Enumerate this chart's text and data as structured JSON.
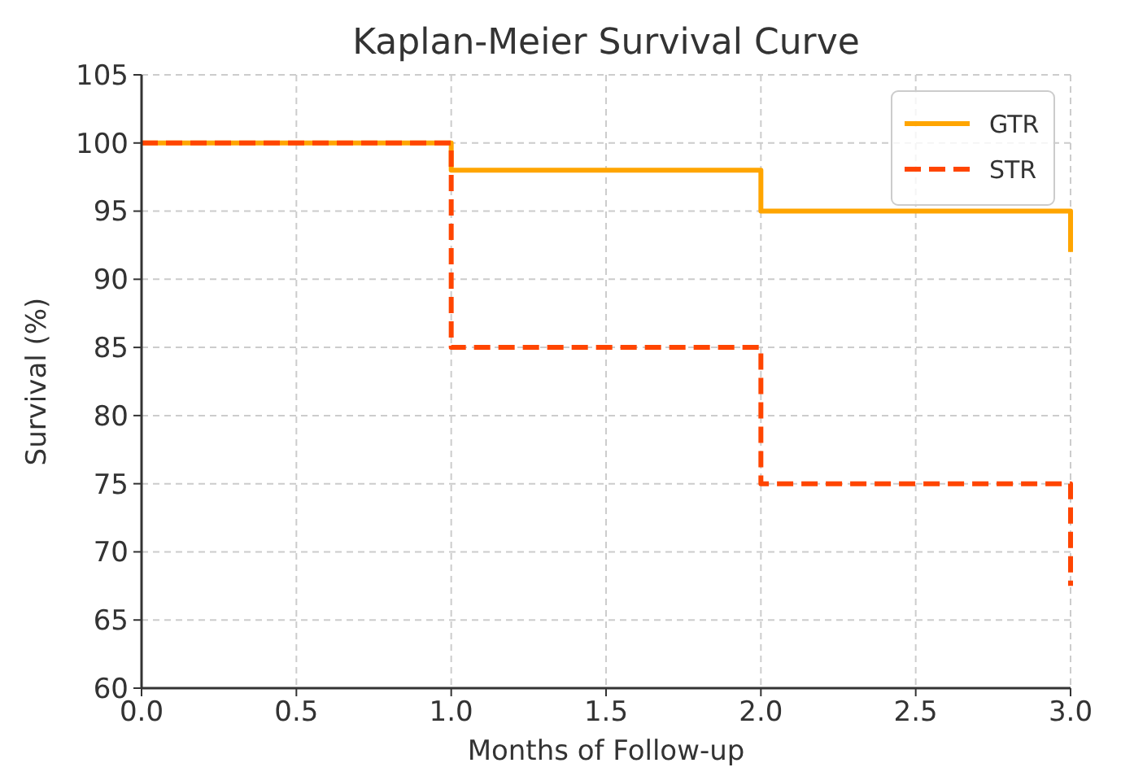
{
  "chart_data": {
    "type": "step",
    "title": "Kaplan-Meier Survival Curve",
    "xlabel": "Months of Follow-up",
    "ylabel": "Survival (%)",
    "x": [
      0,
      1,
      2,
      3
    ],
    "series": [
      {
        "name": "GTR",
        "color": "#ffa500",
        "values": [
          100,
          98,
          95,
          92
        ],
        "line_style": "solid"
      },
      {
        "name": "STR",
        "color": "#ff4500",
        "values": [
          100,
          85,
          75,
          67.5
        ],
        "line_style": "dashed"
      }
    ],
    "xlim": [
      0,
      3
    ],
    "xticks": [
      {
        "value": 0,
        "label": "0.0"
      },
      {
        "value": 0.5,
        "label": "0.5"
      },
      {
        "value": 1,
        "label": "1.0"
      },
      {
        "value": 1.5,
        "label": "1.5"
      },
      {
        "value": 2,
        "label": "2.0"
      },
      {
        "value": 2.5,
        "label": "2.5"
      },
      {
        "value": 3,
        "label": "3.0"
      }
    ],
    "ylim": [
      60,
      105
    ],
    "yticks": [
      60,
      65,
      70,
      75,
      80,
      85,
      90,
      95,
      100,
      105
    ],
    "grid": true,
    "legend": "top right"
  }
}
